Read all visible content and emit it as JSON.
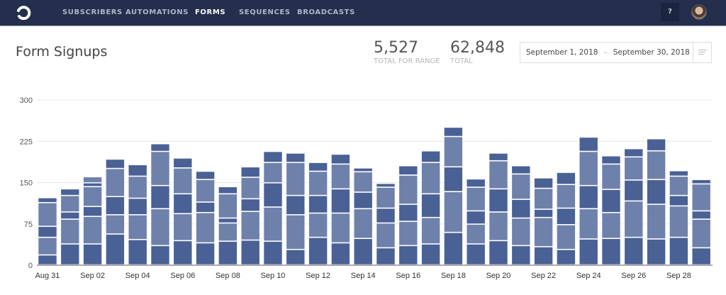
{
  "nav": {
    "items": [
      {
        "label": "SUBSCRIBERS"
      },
      {
        "label": "AUTOMATIONS"
      },
      {
        "label": "FORMS",
        "active": true
      },
      {
        "label": "SEQUENCES"
      },
      {
        "label": "BROADCASTS"
      }
    ],
    "help_label": "?"
  },
  "page": {
    "title": "Form Signups"
  },
  "stats": {
    "range_value": "5,527",
    "range_label": "TOTAL FOR RANGE",
    "total_value": "62,848",
    "total_label": "TOTAL"
  },
  "date_range": {
    "start": "September 1, 2018",
    "separator": "–",
    "end": "September 30, 2018"
  },
  "colors": {
    "nav_bg": "#232f4d",
    "series_dark": "#4a6196",
    "series_light": "#6e81aa"
  },
  "chart_data": {
    "type": "bar",
    "stacked": true,
    "ylim": [
      0,
      300
    ],
    "yticks": [
      0,
      75,
      150,
      225,
      300
    ],
    "grid": true,
    "categories": [
      "Aug 31",
      "Sep 01",
      "Sep 02",
      "Sep 03",
      "Sep 04",
      "Sep 05",
      "Sep 06",
      "Sep 07",
      "Sep 08",
      "Sep 09",
      "Sep 10",
      "Sep 11",
      "Sep 12",
      "Sep 13",
      "Sep 14",
      "Sep 15",
      "Sep 16",
      "Sep 17",
      "Sep 18",
      "Sep 19",
      "Sep 20",
      "Sep 21",
      "Sep 22",
      "Sep 23",
      "Sep 24",
      "Sep 25",
      "Sep 26",
      "Sep 27",
      "Sep 28",
      "Sep 29"
    ],
    "xtick_labels": [
      "Aug 31",
      "Sep 02",
      "Sep 04",
      "Sep 06",
      "Sep 08",
      "Sep 10",
      "Sep 12",
      "Sep 14",
      "Sep 16",
      "Sep 18",
      "Sep 20",
      "Sep 22",
      "Sep 24",
      "Sep 26",
      "Sep 28"
    ],
    "stacks": [
      [
        18,
        32,
        20,
        43,
        9
      ],
      [
        38,
        45,
        13,
        30,
        12
      ],
      [
        38,
        50,
        18,
        36,
        7,
        11
      ],
      [
        56,
        35,
        33,
        51,
        17
      ],
      [
        46,
        45,
        30,
        40,
        21
      ],
      [
        35,
        67,
        42,
        62,
        14
      ],
      [
        44,
        49,
        36,
        47,
        18
      ],
      [
        40,
        55,
        19,
        41,
        15
      ],
      [
        43,
        33,
        9,
        44,
        13
      ],
      [
        45,
        52,
        23,
        39,
        19
      ],
      [
        43,
        62,
        44,
        37,
        20
      ],
      [
        28,
        63,
        35,
        60,
        17
      ],
      [
        50,
        44,
        32,
        44,
        16
      ],
      [
        40,
        54,
        44,
        45,
        18
      ],
      [
        48,
        54,
        30,
        37,
        7
      ],
      [
        31,
        45,
        27,
        38,
        7
      ],
      [
        35,
        44,
        31,
        53,
        17
      ],
      [
        38,
        48,
        43,
        57,
        21
      ],
      [
        59,
        74,
        45,
        55,
        17
      ],
      [
        38,
        36,
        24,
        43,
        15
      ],
      [
        44,
        52,
        42,
        51,
        14
      ],
      [
        35,
        50,
        34,
        46,
        15
      ],
      [
        33,
        53,
        15,
        38,
        19
      ],
      [
        28,
        45,
        30,
        43,
        22
      ],
      [
        47,
        55,
        42,
        62,
        26
      ],
      [
        48,
        47,
        42,
        46,
        15
      ],
      [
        50,
        66,
        38,
        42,
        15
      ],
      [
        47,
        63,
        45,
        52,
        22
      ],
      [
        50,
        57,
        19,
        35,
        10
      ],
      [
        31,
        52,
        15,
        49,
        8
      ]
    ]
  }
}
